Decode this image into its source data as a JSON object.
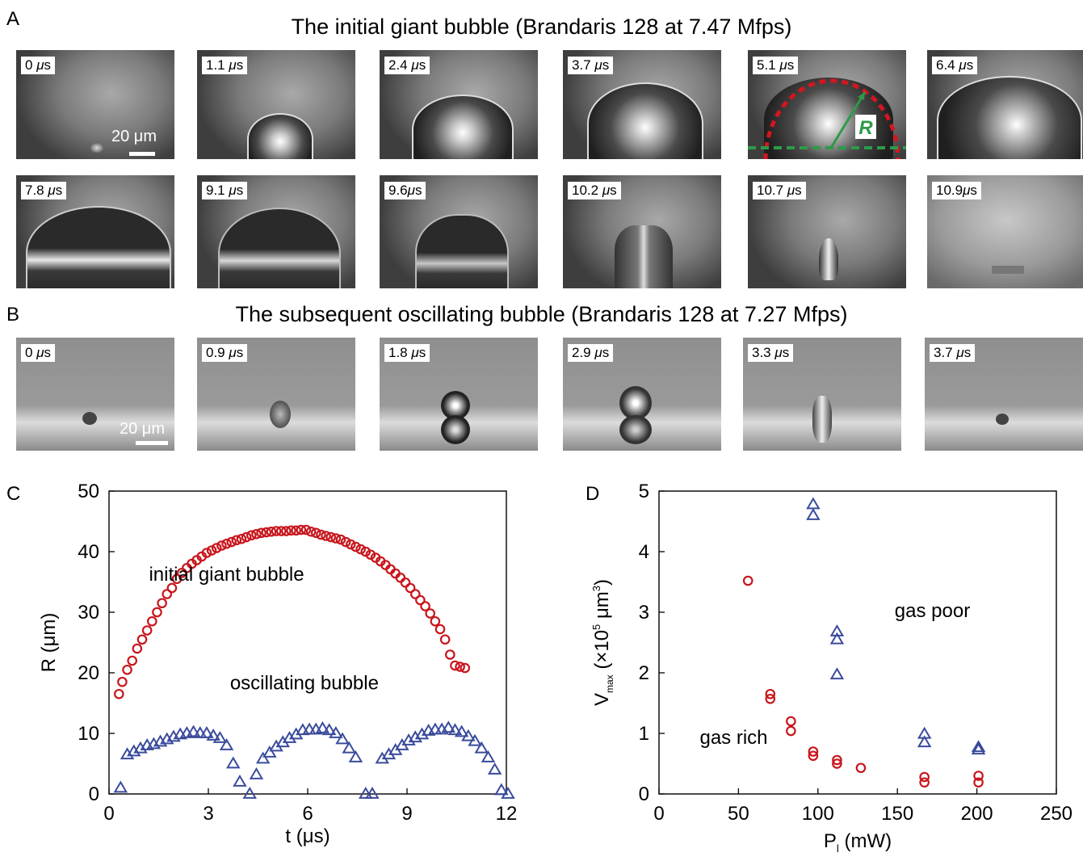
{
  "panels": {
    "a": "A",
    "b": "B",
    "c": "C",
    "d": "D"
  },
  "row_a": {
    "title": "The initial giant bubble (Brandaris 128 at 7.47 Mfps)",
    "frames_top": [
      "0 μs",
      "1.1 μs",
      "2.4 μs",
      "3.7 μs",
      "5.1 μs",
      "6.4 μs"
    ],
    "frames_bottom": [
      "7.8 μs",
      "9.1 μs",
      "9.6μs",
      "10.2 μs",
      "10.7 μs",
      "10.9μs"
    ],
    "scale": "20 μm",
    "radius_label": "R"
  },
  "row_b": {
    "title": "The subsequent oscillating bubble (Brandaris 128 at 7.27 Mfps)",
    "frames": [
      "0 μs",
      "0.9 μs",
      "1.8 μs",
      "2.9 μs",
      "3.3 μs",
      "3.7 μs"
    ],
    "scale": "20 μm"
  },
  "chart_data": [
    {
      "type": "scatter",
      "xlabel": "t (μs)",
      "ylabel": "R (μm)",
      "xlim": [
        0,
        12
      ],
      "ylim": [
        0,
        50
      ],
      "xticks": [
        "0",
        "3",
        "6",
        "9",
        "12"
      ],
      "yticks": [
        "0",
        "10",
        "20",
        "30",
        "40",
        "50"
      ],
      "colors": {
        "giant": "#c8161d",
        "osc": "#3a4b9c"
      },
      "annotations": [
        "initial giant bubble",
        "oscillating bubble"
      ],
      "series": [
        {
          "key": "giant",
          "marker": "circle",
          "x": [
            0.3,
            0.4,
            0.55,
            0.7,
            0.85,
            1.0,
            1.15,
            1.3,
            1.45,
            1.6,
            1.75,
            1.9,
            2.05,
            2.2,
            2.35,
            2.5,
            2.65,
            2.8,
            2.95,
            3.1,
            3.25,
            3.4,
            3.55,
            3.7,
            3.85,
            4.0,
            4.15,
            4.3,
            4.45,
            4.6,
            4.75,
            4.9,
            5.05,
            5.2,
            5.35,
            5.5,
            5.65,
            5.8,
            5.95,
            6.1,
            6.25,
            6.4,
            6.55,
            6.7,
            6.85,
            7.0,
            7.15,
            7.3,
            7.45,
            7.6,
            7.75,
            7.9,
            8.05,
            8.2,
            8.35,
            8.5,
            8.65,
            8.8,
            8.95,
            9.1,
            9.25,
            9.4,
            9.55,
            9.7,
            9.85,
            10.0,
            10.15,
            10.3,
            10.45,
            10.6,
            10.75
          ],
          "y": [
            16.5,
            18.5,
            20.5,
            22,
            24,
            25.5,
            27,
            28.5,
            30,
            31.5,
            33,
            34,
            35.5,
            36.5,
            37.3,
            38,
            38.6,
            39.2,
            39.8,
            40.2,
            40.6,
            41,
            41.3,
            41.6,
            41.9,
            42.1,
            42.4,
            42.7,
            42.9,
            43.1,
            43.2,
            43.3,
            43.4,
            43.4,
            43.4,
            43.5,
            43.5,
            43.6,
            43.6,
            43.3,
            43.1,
            42.8,
            42.6,
            42.4,
            42.2,
            42,
            41.6,
            41.2,
            40.8,
            40.4,
            40,
            39.5,
            39,
            38.4,
            37.8,
            37.1,
            36.4,
            35.7,
            34.9,
            34,
            33,
            32,
            31,
            29.8,
            28.5,
            27.2,
            25.5,
            23,
            21.2,
            21,
            20.8
          ]
        },
        {
          "key": "osc",
          "marker": "triangle",
          "x": [
            0.35,
            0.55,
            0.75,
            0.95,
            1.15,
            1.35,
            1.55,
            1.75,
            1.95,
            2.15,
            2.35,
            2.55,
            2.75,
            2.95,
            3.15,
            3.35,
            3.55,
            3.75,
            3.95,
            4.25,
            4.45,
            4.65,
            4.85,
            5.05,
            5.25,
            5.45,
            5.65,
            5.85,
            6.05,
            6.25,
            6.45,
            6.65,
            6.85,
            7.05,
            7.25,
            7.45,
            7.75,
            7.95,
            8.25,
            8.45,
            8.65,
            8.85,
            9.05,
            9.25,
            9.45,
            9.65,
            9.85,
            10.05,
            10.25,
            10.45,
            10.65,
            10.85,
            11.05,
            11.25,
            11.45,
            11.65,
            11.85,
            12.05
          ],
          "y": [
            1,
            6.5,
            7,
            7.5,
            8,
            8.2,
            8.6,
            9,
            9.4,
            9.8,
            10,
            10.2,
            10,
            10,
            9.6,
            9.2,
            8,
            5,
            2,
            0,
            3.2,
            5.8,
            6.8,
            7.8,
            8.5,
            9.2,
            9.8,
            10.5,
            10.6,
            10.6,
            10.8,
            10.5,
            10,
            9,
            7.5,
            6,
            0,
            0,
            5.8,
            6.5,
            7.2,
            8,
            8.8,
            9.3,
            9.8,
            10.4,
            10.6,
            10.6,
            10.9,
            10.5,
            10.2,
            9.5,
            8.7,
            7.5,
            6,
            4,
            0.6,
            0
          ]
        }
      ]
    },
    {
      "type": "scatter",
      "xlabel": "P (mW)",
      "xlabel_sub": "l",
      "ylabel": "V (×10 μm )",
      "ylabel_parts": {
        "base": "V",
        "sub": "max",
        "pre": "(×10",
        "sup1": "5",
        "mid": " μm",
        "sup2": "3",
        "post": ")"
      },
      "xlim": [
        0,
        250
      ],
      "ylim": [
        0,
        5
      ],
      "xticks": [
        "0",
        "50",
        "100",
        "150",
        "200",
        "250"
      ],
      "yticks": [
        "0",
        "1",
        "2",
        "3",
        "4",
        "5"
      ],
      "colors": {
        "rich": "#c8161d",
        "poor": "#3a4b9c"
      },
      "annotations": [
        "gas poor",
        "gas rich"
      ],
      "series": [
        {
          "key": "rich",
          "marker": "circle",
          "x": [
            56,
            70,
            70,
            83,
            83,
            97,
            97,
            112,
            112,
            127,
            167,
            167,
            201,
            201
          ],
          "y": [
            3.52,
            1.65,
            1.57,
            1.2,
            1.04,
            0.7,
            0.63,
            0.56,
            0.5,
            0.43,
            0.28,
            0.19,
            0.3,
            0.19
          ]
        },
        {
          "key": "poor",
          "marker": "triangle",
          "x": [
            97,
            97,
            112,
            112,
            112,
            167,
            167,
            201,
            201
          ],
          "y": [
            4.78,
            4.6,
            2.68,
            2.55,
            1.97,
            0.99,
            0.85,
            0.77,
            0.73
          ]
        }
      ]
    }
  ]
}
